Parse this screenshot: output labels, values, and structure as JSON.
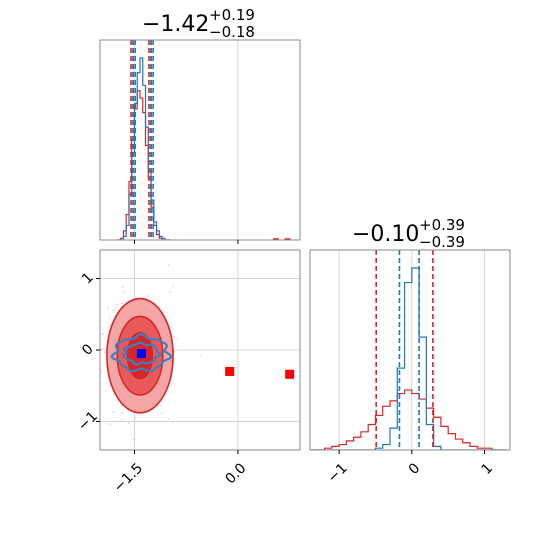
{
  "chart_data": [
    {
      "type": "histogram",
      "panel": "top-left",
      "title": {
        "value": "−1.42",
        "plus": "+0.19",
        "minus": "−0.18"
      },
      "xlim": [
        -2.0,
        0.9
      ],
      "grid": true,
      "series": [
        {
          "name": "",
          "color": "#d62728",
          "quantiles": [
            -1.55,
            -1.52,
            -1.29,
            -1.26
          ]
        },
        {
          "name": "",
          "color": "#1f77b4",
          "quantiles": [
            -1.52,
            -1.49,
            -1.26,
            -1.23
          ]
        }
      ],
      "bins": {
        "edges": [
          -1.74,
          -1.7,
          -1.66,
          -1.62,
          -1.58,
          -1.54,
          -1.5,
          -1.46,
          -1.42,
          -1.38,
          -1.34,
          -1.3,
          -1.26,
          -1.22,
          -1.18,
          -1.14,
          -1.1,
          -1.06,
          -1.02,
          -0.98
        ],
        "red": [
          0.0,
          0.01,
          0.05,
          0.14,
          0.32,
          0.55,
          0.72,
          0.82,
          0.78,
          0.7,
          0.52,
          0.34,
          0.18,
          0.08,
          0.03,
          0.01,
          0.0,
          0.0,
          0.0
        ],
        "blue": [
          0.0,
          0.0,
          0.02,
          0.08,
          0.25,
          0.48,
          0.75,
          0.92,
          1.0,
          0.85,
          0.62,
          0.38,
          0.22,
          0.1,
          0.05,
          0.02,
          0.01,
          0.0,
          0.0
        ]
      },
      "outliers": [
        0.55,
        0.72
      ]
    },
    {
      "type": "scatter",
      "panel": "bottom-left",
      "xlim": [
        -2.0,
        0.9
      ],
      "ylim": [
        -1.4,
        1.4
      ],
      "xticks": [
        -1.5,
        0.0
      ],
      "xtick_labels": [
        "−1.5",
        "0.0"
      ],
      "yticks": [
        1,
        0,
        -1
      ],
      "ytick_labels": [
        "1",
        "0",
        "−1"
      ],
      "grid": true,
      "points": [
        {
          "x": -1.4,
          "y": -0.05,
          "color": "#0000ff"
        },
        {
          "x": -0.12,
          "y": -0.3,
          "color": "#ff0000"
        },
        {
          "x": 0.75,
          "y": -0.34,
          "color": "#ff0000"
        }
      ],
      "contours": [
        {
          "color": "#d62728",
          "center": [
            -1.42,
            -0.08
          ],
          "radii": [
            [
              0.48,
              0.8
            ],
            [
              0.33,
              0.55
            ],
            [
              0.18,
              0.32
            ]
          ]
        },
        {
          "color": "#1f77b4",
          "center": [
            -1.4,
            -0.05
          ],
          "radii": [
            [
              0.39,
              0.24
            ],
            [
              0.25,
              0.14
            ]
          ]
        }
      ]
    },
    {
      "type": "histogram",
      "panel": "bottom-right",
      "title": {
        "value": "−0.10",
        "plus": "+0.39",
        "minus": "−0.39"
      },
      "xlim": [
        -1.4,
        1.35
      ],
      "xticks": [
        -1,
        0,
        1
      ],
      "xtick_labels": [
        "−1",
        "0",
        "1"
      ],
      "grid": true,
      "series": [
        {
          "name": "",
          "color": "#d62728",
          "quantiles": [
            -0.49,
            0.29
          ]
        },
        {
          "name": "",
          "color": "#1f77b4",
          "quantiles": [
            -0.17,
            0.1
          ]
        }
      ],
      "bins": {
        "edges": [
          -1.4,
          -1.3,
          -1.2,
          -1.1,
          -1.0,
          -0.9,
          -0.8,
          -0.7,
          -0.6,
          -0.5,
          -0.4,
          -0.3,
          -0.2,
          -0.1,
          0.0,
          0.1,
          0.2,
          0.3,
          0.4,
          0.5,
          0.6,
          0.7,
          0.8,
          0.9,
          1.0,
          1.1,
          1.2,
          1.3
        ],
        "red": [
          0.0,
          0.0,
          0.01,
          0.02,
          0.03,
          0.05,
          0.07,
          0.1,
          0.14,
          0.19,
          0.24,
          0.27,
          0.31,
          0.33,
          0.31,
          0.28,
          0.23,
          0.18,
          0.13,
          0.09,
          0.06,
          0.04,
          0.02,
          0.01,
          0.01,
          0.0,
          0.0
        ],
        "blue": [
          0.0,
          0.0,
          0.0,
          0.0,
          0.0,
          0.0,
          0.0,
          0.0,
          0.0,
          0.01,
          0.03,
          0.12,
          0.45,
          0.92,
          1.0,
          0.62,
          0.14,
          0.02,
          0.0,
          0.0,
          0.0,
          0.0,
          0.0,
          0.0,
          0.0,
          0.0,
          0.0
        ]
      }
    }
  ]
}
